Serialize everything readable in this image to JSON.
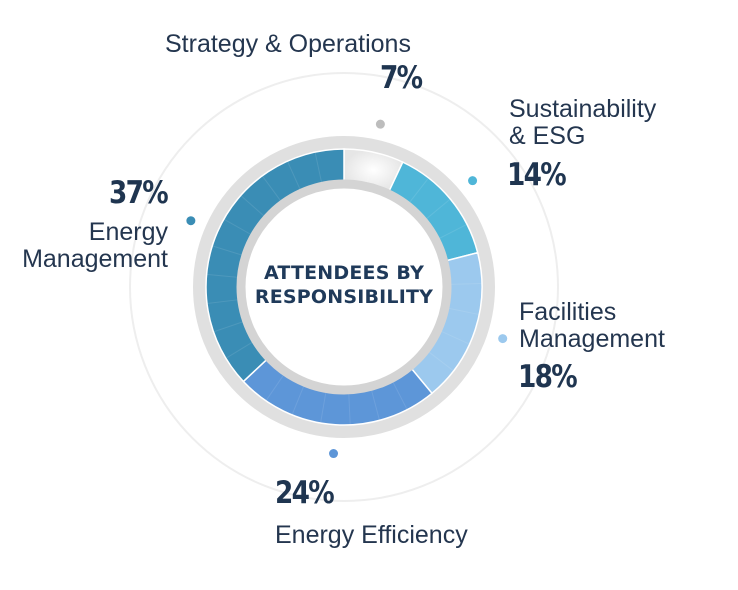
{
  "chart_data": {
    "type": "pie",
    "variant": "donut",
    "title": "ATTENDEES BY RESPONSIBILITY",
    "title_lines": [
      "ATTENDEES BY",
      "RESPONSIBILITY"
    ],
    "slices": [
      {
        "id": "strategy",
        "label": "Strategy & Operations",
        "label_lines": [
          "Strategy & Operations"
        ],
        "value": 7,
        "value_label": "7%",
        "color": "#f4f4f4"
      },
      {
        "id": "sustainability",
        "label": "Sustainability & ESG",
        "label_lines": [
          "Sustainability",
          "& ESG"
        ],
        "value": 14,
        "value_label": "14%",
        "color": "#4fb6d8"
      },
      {
        "id": "facilities",
        "label": "Facilities Management",
        "label_lines": [
          "Facilities",
          "Management"
        ],
        "value": 18,
        "value_label": "18%",
        "color": "#9cc9ee"
      },
      {
        "id": "efficiency",
        "label": "Energy Efficiency",
        "label_lines": [
          "Energy Efficiency"
        ],
        "value": 24,
        "value_label": "24%",
        "color": "#5d96d8"
      },
      {
        "id": "management",
        "label": "Energy Management",
        "label_lines": [
          "Energy",
          "Management"
        ],
        "value": 37,
        "value_label": "37%",
        "color": "#3a8db5"
      }
    ],
    "legend": "none",
    "colors": {
      "text": "#24364f",
      "value_text": "#1f3550",
      "title_text": "#1f3a5a",
      "track": "#dedede",
      "inner_ring": "#d6d6d6",
      "guide_circle": "#eeeeee"
    }
  }
}
